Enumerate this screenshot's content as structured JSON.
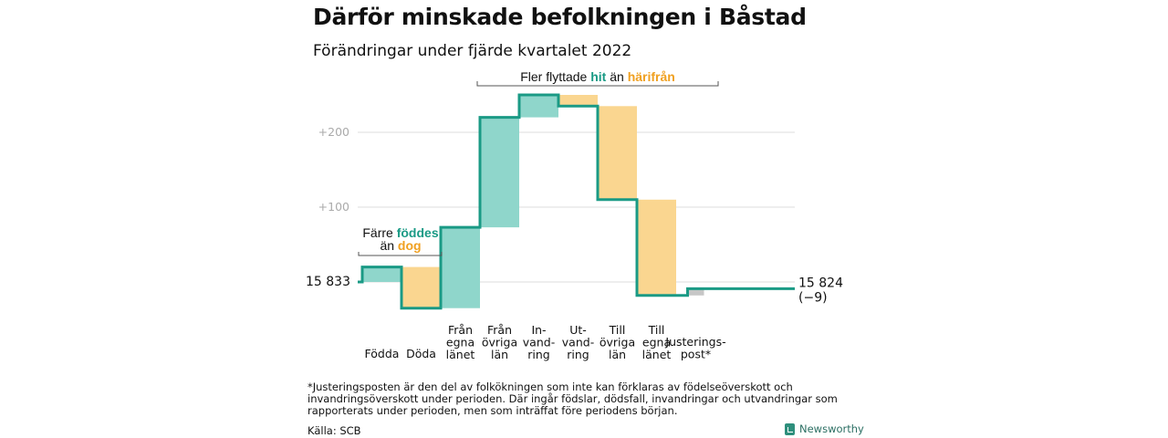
{
  "title": "Därför minskade befolkningen i Båstad",
  "subtitle": "Förändringar under fjärde kvartalet 2022",
  "chart_data": {
    "type": "waterfall",
    "start_label": "15 833",
    "end_label_value": "15 824",
    "end_label_change": "(−9)",
    "y_ticks": [
      {
        "value": 100,
        "label": "+100"
      },
      {
        "value": 200,
        "label": "+200"
      }
    ],
    "steps": [
      {
        "key": "fodda",
        "label_lines": [
          "Födda"
        ],
        "change": 20,
        "kind": "in"
      },
      {
        "key": "doda",
        "label_lines": [
          "Döda"
        ],
        "change": -55,
        "kind": "out"
      },
      {
        "key": "fran-egna-lanet",
        "label_lines": [
          "Från",
          "egna",
          "länet"
        ],
        "change": 108,
        "kind": "in"
      },
      {
        "key": "fran-ovriga-lan",
        "label_lines": [
          "Från",
          "övriga",
          "län"
        ],
        "change": 147,
        "kind": "in"
      },
      {
        "key": "invandring",
        "label_lines": [
          "In-",
          "vand-",
          "ring"
        ],
        "change": 30,
        "kind": "in"
      },
      {
        "key": "utvandring",
        "label_lines": [
          "Ut-",
          "vand-",
          "ring"
        ],
        "change": -15,
        "kind": "out"
      },
      {
        "key": "till-ovriga-lan",
        "label_lines": [
          "Till",
          "övriga",
          "län"
        ],
        "change": -125,
        "kind": "out"
      },
      {
        "key": "till-egna-lanet",
        "label_lines": [
          "Till",
          "egna",
          "länet"
        ],
        "change": -128,
        "kind": "out"
      },
      {
        "key": "justeringspost",
        "label_lines": [
          "Justerings-",
          "post*"
        ],
        "change": 9,
        "kind": "adjust"
      }
    ],
    "annotation_top": {
      "pre": "Fler flyttade ",
      "in_word": "hit",
      "mid": " än ",
      "out_word": "härifrån"
    },
    "annotation_left": {
      "line1_pre": "Färre ",
      "line1_in": "föddes",
      "line2_pre": "än ",
      "line2_out": "dog"
    },
    "colors": {
      "in_fill": "#8fd6cb",
      "out_fill": "#fad690",
      "adjust_fill": "#c6c6c6",
      "line": "#1a9a85",
      "in_text": "#1a9a85",
      "out_text": "#f0a020",
      "grid": "#dddddd",
      "tick_text": "#aaaaaa"
    }
  },
  "footnote": "*Justeringsposten är den del av folkökningen som inte kan förklaras av födelseöverskott och invandringsöverskott under perioden. Där ingår födslar, dödsfall, invandringar och utvandringar som rapporterats under perioden, men som inträffat före periodens början.",
  "source": "Källa: SCB",
  "brand": "Newsworthy"
}
